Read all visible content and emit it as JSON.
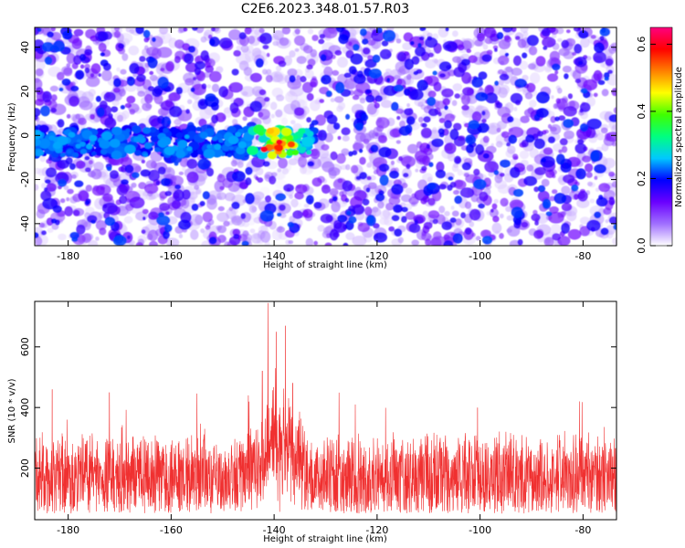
{
  "title": "C2E6.2023.348.01.57.R03",
  "colors": {
    "snr_line": "#f03030",
    "frame": "#000000"
  },
  "chart_data": [
    {
      "type": "heatmap",
      "xlabel": "Height of straight line (km)",
      "ylabel": "Frequency (Hz)",
      "xlim": [
        -186.5,
        -73.5
      ],
      "ylim": [
        -50,
        49
      ],
      "xticks": [
        -180,
        -160,
        -140,
        -120,
        -100,
        -80
      ],
      "xtick_labels": [
        "-180",
        "-160",
        "-140",
        "-120",
        "-100",
        "-80"
      ],
      "yticks": [
        -40,
        -20,
        0,
        20,
        40
      ],
      "ytick_labels": [
        "-40",
        "-20",
        "0",
        "20",
        "40"
      ],
      "grid": false,
      "features": {
        "band_center_freq_hz": -3,
        "band_x_range_km": [
          -187,
          -132
        ],
        "peak_x_km": -139,
        "peak_amplitude": 0.6
      },
      "colorbar": {
        "label": "Normalized spectral amplitude",
        "range": [
          0.0,
          0.65
        ],
        "ticks": [
          0.0,
          0.2,
          0.4,
          0.6
        ],
        "tick_labels": [
          "0.0",
          "0.2",
          "0.4",
          "0.6"
        ],
        "colormap": [
          "#ffffff",
          "#a070ff",
          "#6a00ff",
          "#0000ff",
          "#00c8ff",
          "#00ff80",
          "#40ff00",
          "#ffff00",
          "#ff8000",
          "#ff0000",
          "#ff0080"
        ]
      }
    },
    {
      "type": "line",
      "xlabel": "Height of straight line (km)",
      "ylabel": "SNR (10 * v/v)",
      "xlim": [
        -186.5,
        -73.5
      ],
      "ylim": [
        30,
        750
      ],
      "xticks": [
        -180,
        -160,
        -140,
        -120,
        -100,
        -80
      ],
      "xtick_labels": [
        "-180",
        "-160",
        "-140",
        "-120",
        "-100",
        "-80"
      ],
      "yticks": [
        200,
        400,
        600
      ],
      "ytick_labels": [
        "200",
        "400",
        "600"
      ],
      "grid": false,
      "baseline_snr": 160,
      "noise_band": [
        50,
        330
      ],
      "peaks": [
        {
          "x": -141.2,
          "y": 745
        },
        {
          "x": -137.8,
          "y": 670
        },
        {
          "x": -139.6,
          "y": 650
        },
        {
          "x": -142.3,
          "y": 520
        },
        {
          "x": -136.4,
          "y": 480
        },
        {
          "x": -172.0,
          "y": 450
        },
        {
          "x": -145.0,
          "y": 440
        },
        {
          "x": -100.5,
          "y": 400
        },
        {
          "x": -80.7,
          "y": 420
        },
        {
          "x": -183.1,
          "y": 460
        }
      ]
    }
  ]
}
